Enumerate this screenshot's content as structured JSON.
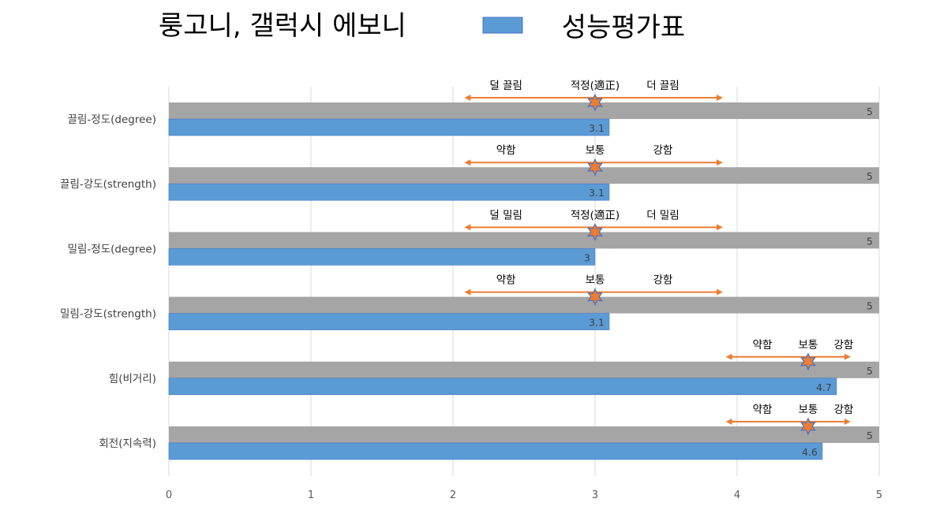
{
  "header": {
    "title": "룽고니, 갤럭시 에보니",
    "legend_label": "성능평가표"
  },
  "colors": {
    "series_max": "#a5a5a5",
    "series_score": "#5b9bd5",
    "series_score_border": "#4472c4",
    "arrow": "#ed7d31",
    "star": "#ed7d31",
    "star_border": "#4472c4",
    "grid": "#d9d9d9"
  },
  "chart_data": {
    "type": "bar",
    "orientation": "horizontal",
    "categories": [
      "끌림-정도(degree)",
      "끌림-강도(strength)",
      "밀림-정도(degree)",
      "밀림-강도(strength)",
      "힘(비거리)",
      "회전(지속력)"
    ],
    "series": [
      {
        "values": [
          5,
          5,
          5,
          5,
          5,
          5
        ],
        "color": "#a5a5a5"
      },
      {
        "name": "성능평가표",
        "values": [
          3.1,
          3.1,
          3,
          3.1,
          4.7,
          4.6
        ],
        "color": "#5b9bd5"
      }
    ],
    "xlim": [
      0,
      5
    ],
    "x_ticks": [
      "0",
      "1",
      "2",
      "3",
      "4",
      "5"
    ],
    "grid": true,
    "legend": "top",
    "annotations": [
      {
        "low": "덜 끌림",
        "mid": "적정(適正)",
        "high": "더 끌림",
        "marker": 3,
        "arrow_from": 2.08,
        "arrow_to": 3.9
      },
      {
        "low": "약함",
        "mid": "보통",
        "high": "강함",
        "marker": 3,
        "arrow_from": 2.08,
        "arrow_to": 3.9
      },
      {
        "low": "덜 밀림",
        "mid": "적정(適正)",
        "high": "더 밀림",
        "marker": 3,
        "arrow_from": 2.08,
        "arrow_to": 3.9
      },
      {
        "low": "약함",
        "mid": "보통",
        "high": "강함",
        "marker": 3,
        "arrow_from": 2.08,
        "arrow_to": 3.9
      },
      {
        "low": "약함",
        "mid": "보통",
        "high": "강함",
        "marker": 4.5,
        "arrow_from": 3.92,
        "arrow_to": 4.8
      },
      {
        "low": "약함",
        "mid": "보통",
        "high": "강함",
        "marker": 4.5,
        "arrow_from": 3.92,
        "arrow_to": 4.8
      }
    ]
  }
}
